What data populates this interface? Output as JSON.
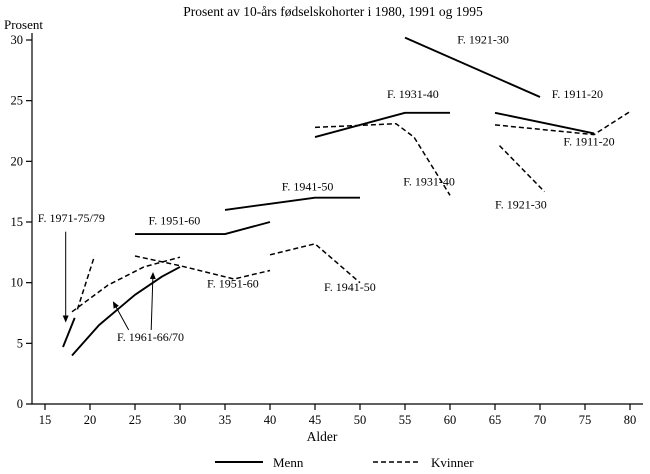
{
  "chart_data": {
    "type": "line",
    "title": "Prosent av 10-års fødselskohorter i 1980, 1991 og 1995",
    "y_corner_label": "Prosent",
    "xlabel": "Alder",
    "xlim": [
      15,
      80
    ],
    "ylim": [
      0,
      30
    ],
    "x_ticks": [
      15,
      20,
      25,
      30,
      35,
      40,
      45,
      50,
      55,
      60,
      65,
      70,
      75,
      80
    ],
    "y_ticks": [
      0,
      5,
      10,
      15,
      20,
      25,
      30
    ],
    "grid": false,
    "legend_position": "bottom",
    "legend": [
      {
        "label": "Menn",
        "style": "solid"
      },
      {
        "label": "Kvinner",
        "style": "dashed"
      }
    ],
    "series": [
      {
        "name": "Menn F. 1921-30",
        "group": "Menn",
        "cohort": "F. 1921-30",
        "style": "solid",
        "points": [
          [
            55,
            30.2
          ],
          [
            70,
            25.3
          ]
        ]
      },
      {
        "name": "Menn F. 1931-40",
        "group": "Menn",
        "cohort": "F. 1931-40",
        "style": "solid",
        "points": [
          [
            45,
            22
          ],
          [
            55,
            24
          ],
          [
            60,
            24
          ]
        ]
      },
      {
        "name": "Menn F. 1911-20",
        "group": "Menn",
        "cohort": "F. 1911-20",
        "style": "solid",
        "points": [
          [
            65,
            24
          ],
          [
            76,
            22.3
          ]
        ]
      },
      {
        "name": "Menn F. 1941-50",
        "group": "Menn",
        "cohort": "F. 1941-50",
        "style": "solid",
        "points": [
          [
            35,
            16
          ],
          [
            40,
            16.5
          ],
          [
            45,
            17
          ],
          [
            50,
            17
          ]
        ]
      },
      {
        "name": "Menn F. 1951-60",
        "group": "Menn",
        "cohort": "F. 1951-60",
        "style": "solid",
        "points": [
          [
            25,
            14
          ],
          [
            35,
            14
          ],
          [
            40,
            15
          ]
        ]
      },
      {
        "name": "Menn F. 1961-66/70",
        "group": "Menn",
        "cohort": "F. 1961-66/70",
        "style": "solid",
        "points": [
          [
            18,
            4
          ],
          [
            21,
            6.5
          ],
          [
            25,
            9
          ],
          [
            28,
            10.5
          ],
          [
            30,
            11.3
          ]
        ]
      },
      {
        "name": "Menn F. 1971-75/79",
        "group": "Menn",
        "cohort": "F. 1971-75/79",
        "style": "solid",
        "points": [
          [
            17,
            4.7
          ],
          [
            18.3,
            7.1
          ]
        ]
      },
      {
        "name": "Kvinner F. 1971-75/79",
        "group": "Kvinner",
        "cohort": "F. 1971-75/79",
        "style": "dashed",
        "points": [
          [
            18.6,
            7.8
          ],
          [
            20.5,
            12.2
          ]
        ]
      },
      {
        "name": "Kvinner F. 1961-66/70",
        "group": "Kvinner",
        "cohort": "F. 1961-66/70",
        "style": "dashed",
        "points": [
          [
            18,
            7.6
          ],
          [
            22,
            9.8
          ],
          [
            26,
            11.3
          ],
          [
            30,
            12.1
          ]
        ]
      },
      {
        "name": "Kvinner F. 1951-60",
        "group": "Kvinner",
        "cohort": "F. 1951-60",
        "style": "dashed",
        "points": [
          [
            25,
            12.2
          ],
          [
            30,
            11.4
          ],
          [
            36,
            10.3
          ],
          [
            40,
            11
          ]
        ]
      },
      {
        "name": "Kvinner F. 1941-50",
        "group": "Kvinner",
        "cohort": "F. 1941-50",
        "style": "dashed",
        "points": [
          [
            40,
            12.3
          ],
          [
            45,
            13.2
          ],
          [
            50,
            10
          ]
        ]
      },
      {
        "name": "Kvinner F. 1931-40",
        "group": "Kvinner",
        "cohort": "F. 1931-40",
        "style": "dashed",
        "points": [
          [
            45,
            22.8
          ],
          [
            54,
            23.1
          ],
          [
            56,
            22
          ],
          [
            60,
            17.2
          ]
        ]
      },
      {
        "name": "Kvinner F. 1921-30",
        "group": "Kvinner",
        "cohort": "F. 1921-30",
        "style": "dashed",
        "points": [
          [
            65.5,
            21.3
          ],
          [
            70.5,
            17.5
          ]
        ]
      },
      {
        "name": "Kvinner F. 1911-20",
        "group": "Kvinner",
        "cohort": "F. 1911-20",
        "style": "dashed",
        "points": [
          [
            65,
            23
          ],
          [
            76,
            22.2
          ],
          [
            80,
            24.1
          ]
        ]
      }
    ],
    "annotations": [
      {
        "text": "F. 1971-75/79",
        "x": 14.2,
        "y": 15.0,
        "anchor": "start"
      },
      {
        "text": "F. 1961-66/70",
        "x": 23.0,
        "y": 5.2,
        "anchor": "start"
      },
      {
        "text": "F. 1951-60",
        "x": 26.5,
        "y": 14.8,
        "anchor": "start"
      },
      {
        "text": "F. 1951-60",
        "x": 33.0,
        "y": 9.6,
        "anchor": "start"
      },
      {
        "text": "F. 1941-50",
        "x": 41.3,
        "y": 17.6,
        "anchor": "start"
      },
      {
        "text": "F. 1941-50",
        "x": 46.0,
        "y": 9.3,
        "anchor": "start"
      },
      {
        "text": "F. 1931-40",
        "x": 53.0,
        "y": 25.2,
        "anchor": "start"
      },
      {
        "text": "F. 1931-40",
        "x": 54.8,
        "y": 18.0,
        "anchor": "start"
      },
      {
        "text": "F. 1921-30",
        "x": 60.8,
        "y": 29.7,
        "anchor": "start"
      },
      {
        "text": "F. 1921-30",
        "x": 65.0,
        "y": 16.1,
        "anchor": "start"
      },
      {
        "text": "F. 1911-20",
        "x": 71.3,
        "y": 25.2,
        "anchor": "start"
      },
      {
        "text": "F. 1911-20",
        "x": 72.6,
        "y": 21.3,
        "anchor": "start"
      }
    ],
    "arrows": [
      {
        "from": [
          17.3,
          14.2
        ],
        "to": [
          17.3,
          6.8
        ]
      },
      {
        "from": [
          24.3,
          6.1
        ],
        "to": [
          22.6,
          8.4
        ]
      },
      {
        "from": [
          26.8,
          6.1
        ],
        "to": [
          27.0,
          10.8
        ]
      }
    ]
  }
}
